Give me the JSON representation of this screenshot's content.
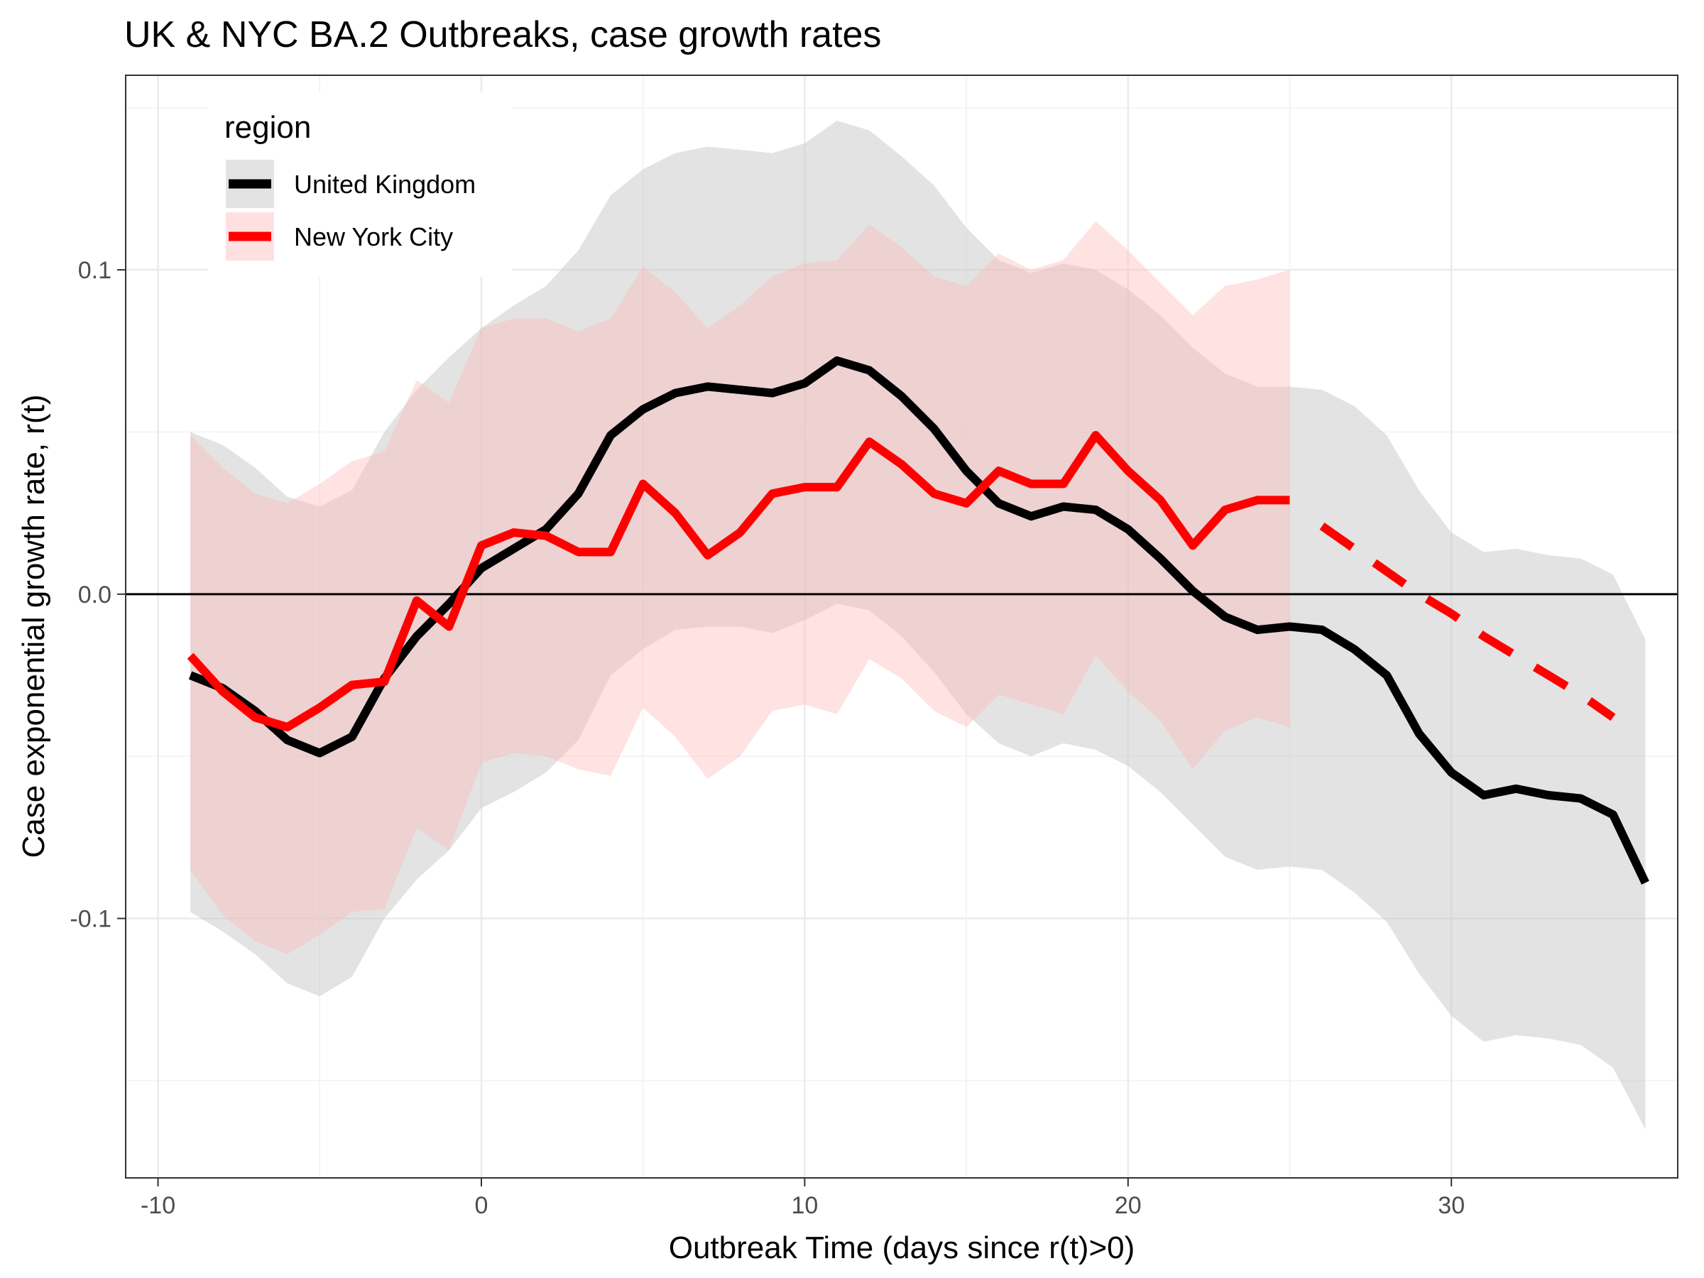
{
  "chart_data": {
    "type": "line",
    "title": "UK & NYC BA.2 Outbreaks, case growth rates",
    "xlabel": "Outbreak Time (days since r(t)>0)",
    "ylabel": "Case exponential growth rate, r(t)",
    "xlim": [
      -11,
      37
    ],
    "ylim": [
      -0.18,
      0.16
    ],
    "x_ticks": [
      -10,
      0,
      10,
      20,
      30
    ],
    "y_ticks": [
      -0.1,
      0.0,
      0.1
    ],
    "x_tick_labels": [
      "-10",
      "0",
      "10",
      "20",
      "30"
    ],
    "y_tick_labels": [
      "-0.1",
      "0.0",
      "0.1"
    ],
    "grid": true,
    "reference_line_y": 0,
    "legend": {
      "title": "region",
      "position": "top-left",
      "entries": [
        "United Kingdom",
        "New York City"
      ]
    },
    "colors": {
      "uk": "#000000",
      "nyc": "#ff0000",
      "uk_band": "#c8c8c8",
      "nyc_band": "#ffb6b6"
    },
    "series": [
      {
        "name": "United Kingdom",
        "color": "#000000",
        "x": [
          -9,
          -8,
          -7,
          -6,
          -5,
          -4,
          -3,
          -2,
          -1,
          0,
          1,
          2,
          3,
          4,
          5,
          6,
          7,
          8,
          9,
          10,
          11,
          12,
          13,
          14,
          15,
          16,
          17,
          18,
          19,
          20,
          21,
          22,
          23,
          24,
          25,
          26,
          27,
          28,
          29,
          30,
          31,
          32,
          33,
          34,
          35,
          36
        ],
        "y": [
          -0.025,
          -0.029,
          -0.036,
          -0.045,
          -0.049,
          -0.044,
          -0.026,
          -0.013,
          -0.003,
          0.008,
          0.014,
          0.02,
          0.031,
          0.049,
          0.057,
          0.062,
          0.064,
          0.063,
          0.062,
          0.065,
          0.072,
          0.069,
          0.061,
          0.051,
          0.038,
          0.028,
          0.024,
          0.027,
          0.026,
          0.02,
          0.011,
          0.001,
          -0.007,
          -0.011,
          -0.01,
          -0.011,
          -0.017,
          -0.025,
          -0.043,
          -0.055,
          -0.062,
          -0.06,
          -0.062,
          -0.063,
          -0.068,
          -0.089
        ],
        "lower": [
          -0.098,
          -0.104,
          -0.111,
          -0.12,
          -0.124,
          -0.118,
          -0.1,
          -0.088,
          -0.079,
          -0.066,
          -0.061,
          -0.055,
          -0.045,
          -0.025,
          -0.017,
          -0.011,
          -0.01,
          -0.01,
          -0.012,
          -0.008,
          -0.003,
          -0.005,
          -0.013,
          -0.024,
          -0.037,
          -0.046,
          -0.05,
          -0.046,
          -0.048,
          -0.053,
          -0.061,
          -0.071,
          -0.081,
          -0.085,
          -0.084,
          -0.085,
          -0.092,
          -0.101,
          -0.117,
          -0.13,
          -0.138,
          -0.136,
          -0.137,
          -0.139,
          -0.146,
          -0.165
        ],
        "upper": [
          0.05,
          0.046,
          0.039,
          0.03,
          0.027,
          0.032,
          0.05,
          0.063,
          0.073,
          0.082,
          0.089,
          0.095,
          0.106,
          0.123,
          0.131,
          0.136,
          0.138,
          0.137,
          0.136,
          0.139,
          0.146,
          0.143,
          0.135,
          0.126,
          0.113,
          0.103,
          0.099,
          0.102,
          0.1,
          0.094,
          0.086,
          0.076,
          0.068,
          0.064,
          0.064,
          0.063,
          0.058,
          0.049,
          0.032,
          0.019,
          0.013,
          0.014,
          0.012,
          0.011,
          0.006,
          -0.014
        ]
      },
      {
        "name": "New York City",
        "color": "#ff0000",
        "x": [
          -9,
          -8,
          -7,
          -6,
          -5,
          -4,
          -3,
          -2,
          -1,
          0,
          1,
          2,
          3,
          4,
          5,
          6,
          7,
          8,
          9,
          10,
          11,
          12,
          13,
          14,
          15,
          16,
          17,
          18,
          19,
          20,
          21,
          22,
          23,
          24,
          25
        ],
        "y": [
          -0.019,
          -0.03,
          -0.038,
          -0.041,
          -0.035,
          -0.028,
          -0.027,
          -0.002,
          -0.01,
          0.015,
          0.019,
          0.018,
          0.013,
          0.013,
          0.034,
          0.025,
          0.012,
          0.019,
          0.031,
          0.033,
          0.033,
          0.047,
          0.04,
          0.031,
          0.028,
          0.038,
          0.034,
          0.034,
          0.049,
          0.038,
          0.029,
          0.015,
          0.026,
          0.029,
          0.029
        ],
        "lower": [
          -0.085,
          -0.099,
          -0.107,
          -0.111,
          -0.105,
          -0.098,
          -0.097,
          -0.072,
          -0.079,
          -0.052,
          -0.049,
          -0.05,
          -0.054,
          -0.056,
          -0.035,
          -0.044,
          -0.057,
          -0.05,
          -0.036,
          -0.034,
          -0.037,
          -0.02,
          -0.026,
          -0.036,
          -0.041,
          -0.031,
          -0.034,
          -0.037,
          -0.019,
          -0.03,
          -0.039,
          -0.054,
          -0.042,
          -0.038,
          -0.041
        ],
        "upper": [
          0.049,
          0.039,
          0.031,
          0.028,
          0.034,
          0.041,
          0.044,
          0.066,
          0.059,
          0.082,
          0.085,
          0.085,
          0.081,
          0.085,
          0.101,
          0.093,
          0.082,
          0.089,
          0.098,
          0.102,
          0.103,
          0.114,
          0.107,
          0.098,
          0.095,
          0.105,
          0.1,
          0.103,
          0.115,
          0.106,
          0.096,
          0.086,
          0.095,
          0.097,
          0.1
        ]
      },
      {
        "name": "New York City",
        "color": "#ff0000",
        "dashed": true,
        "x": [
          26,
          27,
          28,
          29,
          30,
          31,
          32,
          33,
          34,
          35
        ],
        "y": [
          0.021,
          0.014,
          0.007,
          0.0,
          -0.006,
          -0.013,
          -0.019,
          -0.025,
          -0.031,
          -0.038
        ]
      }
    ]
  }
}
